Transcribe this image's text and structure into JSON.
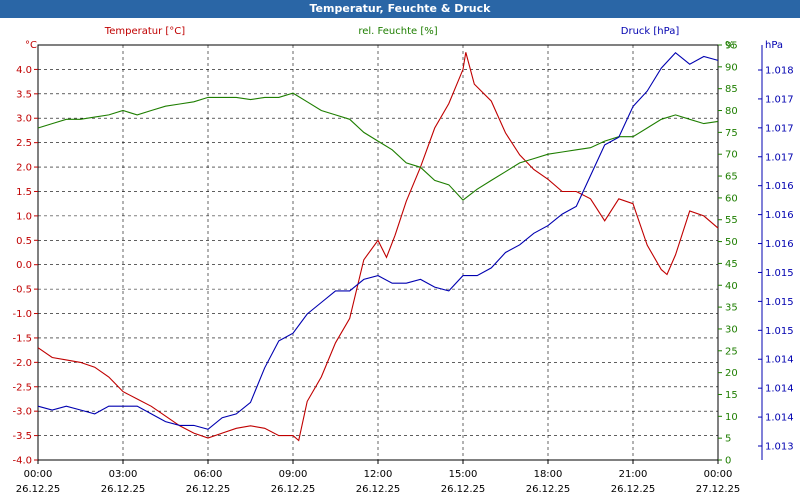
{
  "chart_data": {
    "type": "line",
    "title": "Temperatur, Feuchte & Druck",
    "x_range": [
      0,
      24
    ],
    "x_ticks": [
      {
        "x": 0,
        "time": "00:00",
        "date": "26.12.25"
      },
      {
        "x": 3,
        "time": "03:00",
        "date": "26.12.25"
      },
      {
        "x": 6,
        "time": "06:00",
        "date": "26.12.25"
      },
      {
        "x": 9,
        "time": "09:00",
        "date": "26.12.25"
      },
      {
        "x": 12,
        "time": "12:00",
        "date": "26.12.25"
      },
      {
        "x": 15,
        "time": "15:00",
        "date": "26.12.25"
      },
      {
        "x": 18,
        "time": "18:00",
        "date": "26.12.25"
      },
      {
        "x": 21,
        "time": "21:00",
        "date": "26.12.25"
      },
      {
        "x": 24,
        "time": "00:00",
        "date": "27.12.25"
      }
    ],
    "axes": {
      "temperature": {
        "unit": "°C",
        "label": "Temperatur [°C]",
        "color": "#c00000",
        "range": [
          -4.0,
          4.5
        ],
        "ticks": [
          "4.0",
          "3.5",
          "3.0",
          "2.5",
          "2.0",
          "1.5",
          "1.0",
          "0.5",
          "0.0",
          "-0.5",
          "-1.0",
          "-1.5",
          "-2.0",
          "-2.5",
          "-3.0",
          "-3.5",
          "-4.0"
        ]
      },
      "humidity": {
        "unit": "%",
        "label": "rel. Feuchte [%]",
        "color": "#1e7e00",
        "range": [
          0,
          95
        ],
        "ticks": [
          "95",
          "90",
          "85",
          "80",
          "75",
          "70",
          "65",
          "60",
          "55",
          "50",
          "45",
          "40",
          "35",
          "30",
          "25",
          "20",
          "15",
          "10",
          "5",
          "0"
        ]
      },
      "pressure": {
        "unit": "hPa",
        "label": "Druck [hPa]",
        "color": "#0000b0",
        "range": [
          1012.8,
          1018.2
        ],
        "ticks": [
          "1.018",
          "1.017",
          "1.017",
          "1.017",
          "1.016",
          "1.016",
          "1.016",
          "1.015",
          "1.015",
          "1.015",
          "1.014",
          "1.014",
          "1.014",
          "1.013"
        ]
      }
    },
    "series": [
      {
        "name": "Temperatur",
        "axis": "temperature",
        "color": "#c00000",
        "points": [
          [
            0,
            -1.7
          ],
          [
            0.5,
            -1.9
          ],
          [
            1,
            -1.95
          ],
          [
            1.5,
            -2.0
          ],
          [
            2,
            -2.1
          ],
          [
            2.5,
            -2.3
          ],
          [
            3,
            -2.6
          ],
          [
            3.5,
            -2.75
          ],
          [
            4,
            -2.9
          ],
          [
            4.5,
            -3.1
          ],
          [
            5,
            -3.3
          ],
          [
            5.5,
            -3.45
          ],
          [
            6,
            -3.55
          ],
          [
            6.5,
            -3.45
          ],
          [
            7,
            -3.35
          ],
          [
            7.5,
            -3.3
          ],
          [
            8,
            -3.35
          ],
          [
            8.5,
            -3.5
          ],
          [
            9,
            -3.5
          ],
          [
            9.2,
            -3.6
          ],
          [
            9.5,
            -2.8
          ],
          [
            10,
            -2.3
          ],
          [
            10.5,
            -1.6
          ],
          [
            11,
            -1.1
          ],
          [
            11.5,
            0.1
          ],
          [
            12,
            0.5
          ],
          [
            12.3,
            0.15
          ],
          [
            12.6,
            0.6
          ],
          [
            13,
            1.3
          ],
          [
            13.5,
            2.0
          ],
          [
            14,
            2.8
          ],
          [
            14.5,
            3.3
          ],
          [
            15,
            4.0
          ],
          [
            15.1,
            4.35
          ],
          [
            15.4,
            3.7
          ],
          [
            16,
            3.35
          ],
          [
            16.5,
            2.7
          ],
          [
            17,
            2.25
          ],
          [
            17.5,
            1.95
          ],
          [
            18,
            1.75
          ],
          [
            18.5,
            1.5
          ],
          [
            19,
            1.5
          ],
          [
            19.5,
            1.35
          ],
          [
            20,
            0.9
          ],
          [
            20.5,
            1.35
          ],
          [
            21,
            1.25
          ],
          [
            21.5,
            0.4
          ],
          [
            22,
            -0.1
          ],
          [
            22.2,
            -0.2
          ],
          [
            22.5,
            0.2
          ],
          [
            23,
            1.1
          ],
          [
            23.5,
            1.0
          ],
          [
            24,
            0.75
          ]
        ]
      },
      {
        "name": "rel. Feuchte",
        "axis": "humidity",
        "color": "#1e7e00",
        "points": [
          [
            0,
            76
          ],
          [
            0.5,
            77
          ],
          [
            1,
            78
          ],
          [
            1.5,
            78
          ],
          [
            2,
            78.5
          ],
          [
            2.5,
            79
          ],
          [
            3,
            80
          ],
          [
            3.5,
            79
          ],
          [
            4,
            80
          ],
          [
            4.5,
            81
          ],
          [
            5,
            81.5
          ],
          [
            5.5,
            82
          ],
          [
            6,
            83
          ],
          [
            6.5,
            83
          ],
          [
            7,
            83
          ],
          [
            7.5,
            82.5
          ],
          [
            8,
            83
          ],
          [
            8.5,
            83
          ],
          [
            9,
            84
          ],
          [
            9.5,
            82
          ],
          [
            10,
            80
          ],
          [
            10.5,
            79
          ],
          [
            11,
            78
          ],
          [
            11.5,
            75
          ],
          [
            12,
            73
          ],
          [
            12.5,
            71
          ],
          [
            13,
            68
          ],
          [
            13.5,
            67
          ],
          [
            14,
            64
          ],
          [
            14.5,
            63
          ],
          [
            15,
            59.5
          ],
          [
            15.5,
            62
          ],
          [
            16,
            64
          ],
          [
            16.5,
            66
          ],
          [
            17,
            68
          ],
          [
            17.5,
            69
          ],
          [
            18,
            70
          ],
          [
            18.5,
            70.5
          ],
          [
            19,
            71
          ],
          [
            19.5,
            71.5
          ],
          [
            20,
            73
          ],
          [
            20.5,
            74
          ],
          [
            21,
            74
          ],
          [
            21.5,
            76
          ],
          [
            22,
            78
          ],
          [
            22.5,
            79
          ],
          [
            23,
            78
          ],
          [
            23.5,
            77
          ],
          [
            24,
            77.5
          ]
        ]
      },
      {
        "name": "Druck",
        "axis": "pressure",
        "color": "#0000b0",
        "points": [
          [
            0,
            1013.5
          ],
          [
            0.5,
            1013.45
          ],
          [
            1,
            1013.5
          ],
          [
            1.5,
            1013.45
          ],
          [
            2,
            1013.4
          ],
          [
            2.5,
            1013.5
          ],
          [
            3,
            1013.5
          ],
          [
            3.5,
            1013.5
          ],
          [
            4,
            1013.4
          ],
          [
            4.5,
            1013.3
          ],
          [
            5,
            1013.25
          ],
          [
            5.5,
            1013.25
          ],
          [
            6,
            1013.2
          ],
          [
            6.5,
            1013.35
          ],
          [
            7,
            1013.4
          ],
          [
            7.5,
            1013.55
          ],
          [
            8,
            1014.0
          ],
          [
            8.5,
            1014.35
          ],
          [
            9,
            1014.45
          ],
          [
            9.5,
            1014.7
          ],
          [
            10,
            1014.85
          ],
          [
            10.5,
            1015.0
          ],
          [
            11,
            1015.0
          ],
          [
            11.5,
            1015.15
          ],
          [
            12,
            1015.2
          ],
          [
            12.5,
            1015.1
          ],
          [
            13,
            1015.1
          ],
          [
            13.5,
            1015.15
          ],
          [
            14,
            1015.05
          ],
          [
            14.5,
            1015.0
          ],
          [
            15,
            1015.2
          ],
          [
            15.5,
            1015.2
          ],
          [
            16,
            1015.3
          ],
          [
            16.5,
            1015.5
          ],
          [
            17,
            1015.6
          ],
          [
            17.5,
            1015.75
          ],
          [
            18,
            1015.85
          ],
          [
            18.5,
            1016.0
          ],
          [
            19,
            1016.1
          ],
          [
            19.5,
            1016.5
          ],
          [
            20,
            1016.9
          ],
          [
            20.5,
            1017.0
          ],
          [
            21,
            1017.4
          ],
          [
            21.5,
            1017.6
          ],
          [
            22,
            1017.9
          ],
          [
            22.5,
            1018.1
          ],
          [
            23,
            1017.95
          ],
          [
            23.5,
            1018.05
          ],
          [
            24,
            1018.0
          ]
        ]
      }
    ],
    "grid": true
  }
}
